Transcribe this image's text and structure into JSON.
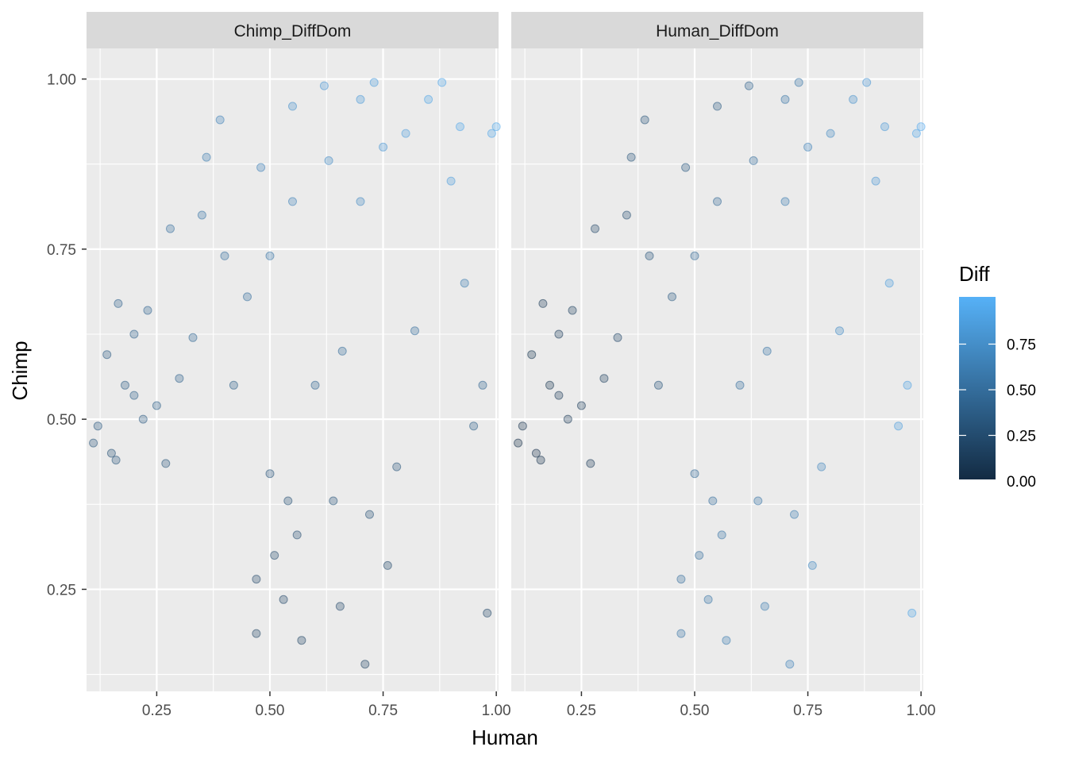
{
  "chart_data": {
    "type": "scatter",
    "facet_variable_values": [
      "Chimp_DiffDom",
      "Human_DiffDom"
    ],
    "xlabel": "Human",
    "ylabel": "Chimp",
    "xlim": [
      0.095,
      1.005
    ],
    "ylim": [
      0.1,
      1.045
    ],
    "x_ticks": [
      0.25,
      0.5,
      0.75,
      1.0
    ],
    "x_tick_labels": [
      "0.25",
      "0.50",
      "0.75",
      "1.00"
    ],
    "y_ticks": [
      0.25,
      0.5,
      0.75,
      1.0
    ],
    "y_tick_labels": [
      "0.25",
      "0.50",
      "0.75",
      "1.00"
    ],
    "grid": true,
    "point_alpha": 0.3,
    "color_scale": {
      "title": "Diff",
      "low_color": "#132b43",
      "high_color": "#56b1f7",
      "limits": [
        0.0,
        1.0
      ],
      "breaks": [
        0.0,
        0.25,
        0.5,
        0.75
      ],
      "break_labels": [
        "0.00",
        "0.25",
        "0.50",
        "0.75"
      ],
      "legend_position": "right"
    },
    "panels": [
      {
        "facet": "Chimp_DiffDom",
        "points": [
          [
            0.11,
            0.465,
            0.3
          ],
          [
            0.12,
            0.49,
            0.32
          ],
          [
            0.14,
            0.595,
            0.35
          ],
          [
            0.15,
            0.45,
            0.28
          ],
          [
            0.16,
            0.44,
            0.3
          ],
          [
            0.165,
            0.67,
            0.4
          ],
          [
            0.18,
            0.55,
            0.35
          ],
          [
            0.2,
            0.535,
            0.38
          ],
          [
            0.2,
            0.625,
            0.4
          ],
          [
            0.22,
            0.5,
            0.35
          ],
          [
            0.23,
            0.66,
            0.42
          ],
          [
            0.25,
            0.52,
            0.38
          ],
          [
            0.27,
            0.435,
            0.3
          ],
          [
            0.28,
            0.78,
            0.5
          ],
          [
            0.3,
            0.56,
            0.4
          ],
          [
            0.33,
            0.62,
            0.45
          ],
          [
            0.35,
            0.8,
            0.55
          ],
          [
            0.36,
            0.885,
            0.6
          ],
          [
            0.39,
            0.94,
            0.65
          ],
          [
            0.4,
            0.74,
            0.5
          ],
          [
            0.42,
            0.55,
            0.38
          ],
          [
            0.45,
            0.68,
            0.5
          ],
          [
            0.47,
            0.265,
            0.2
          ],
          [
            0.47,
            0.185,
            0.18
          ],
          [
            0.48,
            0.87,
            0.65
          ],
          [
            0.5,
            0.42,
            0.3
          ],
          [
            0.5,
            0.74,
            0.55
          ],
          [
            0.51,
            0.3,
            0.22
          ],
          [
            0.53,
            0.235,
            0.2
          ],
          [
            0.54,
            0.38,
            0.28
          ],
          [
            0.55,
            0.96,
            0.75
          ],
          [
            0.55,
            0.82,
            0.65
          ],
          [
            0.56,
            0.33,
            0.25
          ],
          [
            0.57,
            0.175,
            0.18
          ],
          [
            0.6,
            0.55,
            0.42
          ],
          [
            0.62,
            0.99,
            0.8
          ],
          [
            0.63,
            0.88,
            0.72
          ],
          [
            0.64,
            0.38,
            0.3
          ],
          [
            0.655,
            0.225,
            0.2
          ],
          [
            0.66,
            0.6,
            0.48
          ],
          [
            0.7,
            0.97,
            0.82
          ],
          [
            0.7,
            0.82,
            0.7
          ],
          [
            0.71,
            0.14,
            0.18
          ],
          [
            0.72,
            0.36,
            0.28
          ],
          [
            0.73,
            0.995,
            0.85
          ],
          [
            0.75,
            0.9,
            0.8
          ],
          [
            0.76,
            0.285,
            0.22
          ],
          [
            0.78,
            0.43,
            0.3
          ],
          [
            0.8,
            0.92,
            0.85
          ],
          [
            0.82,
            0.63,
            0.5
          ],
          [
            0.85,
            0.97,
            0.9
          ],
          [
            0.88,
            0.995,
            0.92
          ],
          [
            0.9,
            0.85,
            0.85
          ],
          [
            0.92,
            0.93,
            0.92
          ],
          [
            0.93,
            0.7,
            0.6
          ],
          [
            0.95,
            0.49,
            0.38
          ],
          [
            0.97,
            0.55,
            0.42
          ],
          [
            0.98,
            0.215,
            0.2
          ],
          [
            0.99,
            0.92,
            0.92
          ],
          [
            1.0,
            0.93,
            0.93
          ]
        ]
      },
      {
        "facet": "Human_DiffDom",
        "points": [
          [
            0.11,
            0.465,
            0.02
          ],
          [
            0.12,
            0.49,
            0.05
          ],
          [
            0.14,
            0.595,
            0.08
          ],
          [
            0.15,
            0.45,
            0.04
          ],
          [
            0.16,
            0.44,
            0.05
          ],
          [
            0.165,
            0.67,
            0.1
          ],
          [
            0.18,
            0.55,
            0.08
          ],
          [
            0.2,
            0.535,
            0.1
          ],
          [
            0.2,
            0.625,
            0.12
          ],
          [
            0.22,
            0.5,
            0.1
          ],
          [
            0.23,
            0.66,
            0.15
          ],
          [
            0.25,
            0.52,
            0.12
          ],
          [
            0.27,
            0.435,
            0.1
          ],
          [
            0.28,
            0.78,
            0.2
          ],
          [
            0.3,
            0.56,
            0.15
          ],
          [
            0.33,
            0.62,
            0.2
          ],
          [
            0.35,
            0.8,
            0.25
          ],
          [
            0.36,
            0.885,
            0.3
          ],
          [
            0.39,
            0.94,
            0.3
          ],
          [
            0.4,
            0.74,
            0.3
          ],
          [
            0.42,
            0.55,
            0.3
          ],
          [
            0.45,
            0.68,
            0.35
          ],
          [
            0.47,
            0.265,
            0.5
          ],
          [
            0.47,
            0.185,
            0.55
          ],
          [
            0.48,
            0.87,
            0.35
          ],
          [
            0.5,
            0.42,
            0.45
          ],
          [
            0.5,
            0.74,
            0.45
          ],
          [
            0.51,
            0.3,
            0.5
          ],
          [
            0.53,
            0.235,
            0.55
          ],
          [
            0.54,
            0.38,
            0.5
          ],
          [
            0.55,
            0.96,
            0.35
          ],
          [
            0.55,
            0.82,
            0.45
          ],
          [
            0.56,
            0.33,
            0.55
          ],
          [
            0.57,
            0.175,
            0.6
          ],
          [
            0.6,
            0.55,
            0.5
          ],
          [
            0.62,
            0.99,
            0.4
          ],
          [
            0.63,
            0.88,
            0.5
          ],
          [
            0.64,
            0.38,
            0.55
          ],
          [
            0.655,
            0.225,
            0.6
          ],
          [
            0.66,
            0.6,
            0.55
          ],
          [
            0.7,
            0.97,
            0.55
          ],
          [
            0.7,
            0.82,
            0.6
          ],
          [
            0.71,
            0.14,
            0.65
          ],
          [
            0.72,
            0.36,
            0.6
          ],
          [
            0.73,
            0.995,
            0.55
          ],
          [
            0.75,
            0.9,
            0.65
          ],
          [
            0.76,
            0.285,
            0.7
          ],
          [
            0.78,
            0.43,
            0.68
          ],
          [
            0.8,
            0.92,
            0.7
          ],
          [
            0.82,
            0.63,
            0.72
          ],
          [
            0.85,
            0.97,
            0.75
          ],
          [
            0.88,
            0.995,
            0.8
          ],
          [
            0.9,
            0.85,
            0.8
          ],
          [
            0.92,
            0.93,
            0.82
          ],
          [
            0.93,
            0.7,
            0.85
          ],
          [
            0.95,
            0.49,
            0.85
          ],
          [
            0.97,
            0.55,
            0.88
          ],
          [
            0.98,
            0.215,
            0.9
          ],
          [
            0.99,
            0.92,
            0.92
          ],
          [
            1.0,
            0.93,
            0.95
          ]
        ]
      }
    ]
  }
}
